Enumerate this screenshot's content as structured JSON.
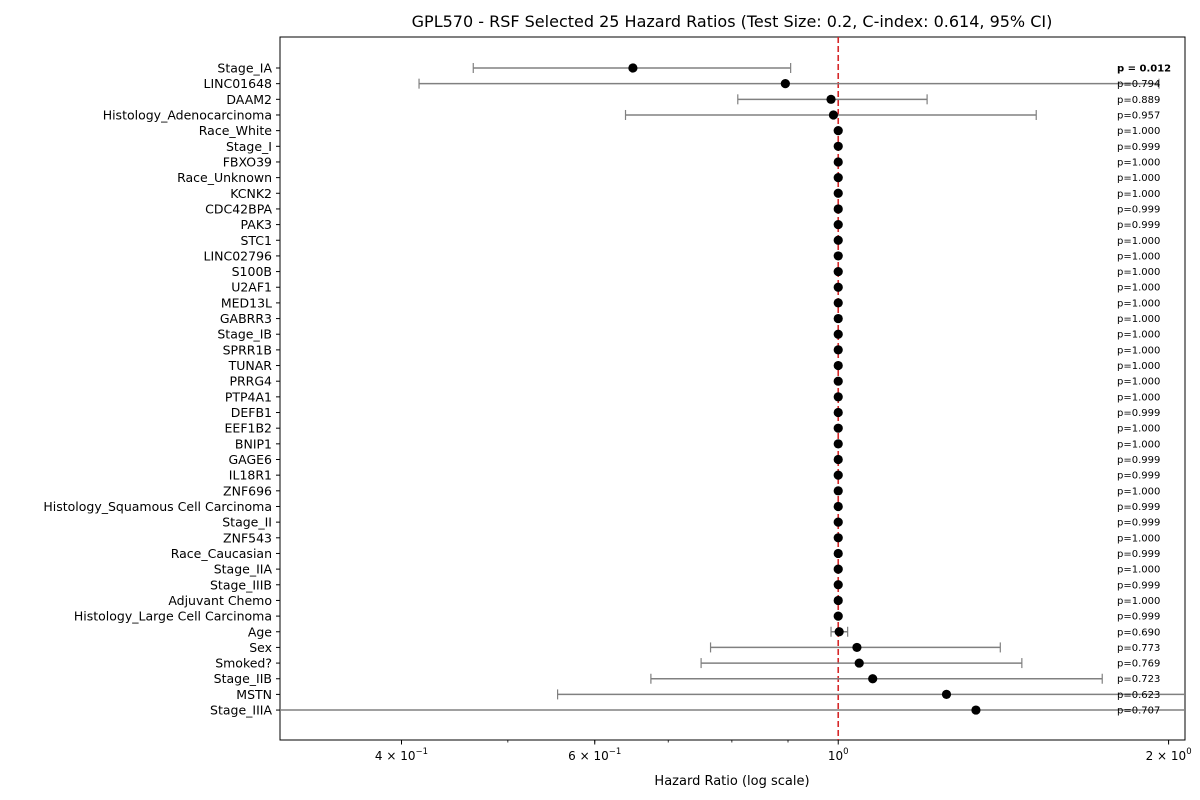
{
  "chart_data": {
    "type": "scatter",
    "title": "GPL570 - RSF Selected 25 Hazard Ratios (Test Size: 0.2, C-index: 0.614, 95% CI)",
    "xlabel": "Hazard Ratio (log scale)",
    "ylabel": "",
    "x_scale": "log",
    "xlim": [
      0.31,
      2.07
    ],
    "x_ticks": [
      {
        "value": 0.4,
        "label": "4 × 10",
        "exp": "−1"
      },
      {
        "value": 0.6,
        "label": "6 × 10",
        "exp": "−1"
      },
      {
        "value": 1.0,
        "label": "10",
        "exp": "0"
      },
      {
        "value": 2.0,
        "label": "2 × 10",
        "exp": "0"
      }
    ],
    "reference_line": {
      "x": 1.0,
      "color": "#d62728",
      "style": "dashed"
    },
    "grid": false,
    "marker_color": "#000000",
    "ci_color": "#808080",
    "rows": [
      {
        "label": "Stage_IA",
        "hr": 0.65,
        "lower": 0.465,
        "upper": 0.905,
        "p": "p = 0.012",
        "significant": true
      },
      {
        "label": "LINC01648",
        "hr": 0.895,
        "lower": 0.415,
        "upper": 1.96,
        "p": "p=0.794"
      },
      {
        "label": "DAAM2",
        "hr": 0.985,
        "lower": 0.81,
        "upper": 1.205,
        "p": "p=0.889"
      },
      {
        "label": "Histology_Adenocarcinoma",
        "hr": 0.99,
        "lower": 0.64,
        "upper": 1.515,
        "p": "p=0.957"
      },
      {
        "label": "Race_White",
        "hr": 1.0,
        "p": "p=1.000"
      },
      {
        "label": "Stage_I",
        "hr": 1.0,
        "p": "p=0.999"
      },
      {
        "label": "FBXO39",
        "hr": 1.0,
        "p": "p=1.000"
      },
      {
        "label": "Race_Unknown",
        "hr": 1.0,
        "p": "p=1.000"
      },
      {
        "label": "KCNK2",
        "hr": 1.0,
        "p": "p=1.000"
      },
      {
        "label": "CDC42BPA",
        "hr": 1.0,
        "p": "p=0.999"
      },
      {
        "label": "PAK3",
        "hr": 1.0,
        "p": "p=0.999"
      },
      {
        "label": "STC1",
        "hr": 1.0,
        "p": "p=1.000"
      },
      {
        "label": "LINC02796",
        "hr": 1.0,
        "p": "p=1.000"
      },
      {
        "label": "S100B",
        "hr": 1.0,
        "p": "p=1.000"
      },
      {
        "label": "U2AF1",
        "hr": 1.0,
        "p": "p=1.000"
      },
      {
        "label": "MED13L",
        "hr": 1.0,
        "p": "p=1.000"
      },
      {
        "label": "GABRR3",
        "hr": 1.0,
        "p": "p=1.000"
      },
      {
        "label": "Stage_IB",
        "hr": 1.0,
        "p": "p=1.000"
      },
      {
        "label": "SPRR1B",
        "hr": 1.0,
        "p": "p=1.000"
      },
      {
        "label": "TUNAR",
        "hr": 1.0,
        "p": "p=1.000"
      },
      {
        "label": "PRRG4",
        "hr": 1.0,
        "p": "p=1.000"
      },
      {
        "label": "PTP4A1",
        "hr": 1.0,
        "p": "p=1.000"
      },
      {
        "label": "DEFB1",
        "hr": 1.0,
        "p": "p=0.999"
      },
      {
        "label": "EEF1B2",
        "hr": 1.0,
        "p": "p=1.000"
      },
      {
        "label": "BNIP1",
        "hr": 1.0,
        "p": "p=1.000"
      },
      {
        "label": "GAGE6",
        "hr": 1.0,
        "p": "p=0.999"
      },
      {
        "label": "IL18R1",
        "hr": 1.0,
        "p": "p=0.999"
      },
      {
        "label": "ZNF696",
        "hr": 1.0,
        "p": "p=1.000"
      },
      {
        "label": "Histology_Squamous Cell Carcinoma",
        "hr": 1.0,
        "p": "p=0.999"
      },
      {
        "label": "Stage_II",
        "hr": 1.0,
        "p": "p=0.999"
      },
      {
        "label": "ZNF543",
        "hr": 1.0,
        "p": "p=1.000"
      },
      {
        "label": "Race_Caucasian",
        "hr": 1.0,
        "p": "p=0.999"
      },
      {
        "label": "Stage_IIA",
        "hr": 1.0,
        "p": "p=1.000"
      },
      {
        "label": "Stage_IIIB",
        "hr": 1.0,
        "p": "p=0.999"
      },
      {
        "label": "Adjuvant Chemo",
        "hr": 1.0,
        "p": "p=1.000"
      },
      {
        "label": "Histology_Large Cell Carcinoma",
        "hr": 1.0,
        "p": "p=0.999"
      },
      {
        "label": "Age",
        "hr": 1.002,
        "lower": 0.985,
        "upper": 1.02,
        "p": "p=0.690"
      },
      {
        "label": "Sex",
        "hr": 1.04,
        "lower": 0.765,
        "upper": 1.405,
        "p": "p=0.773"
      },
      {
        "label": "Smoked?",
        "hr": 1.045,
        "lower": 0.75,
        "upper": 1.47,
        "p": "p=0.769"
      },
      {
        "label": "Stage_IIB",
        "hr": 1.075,
        "lower": 0.675,
        "upper": 1.74,
        "p": "p=0.723"
      },
      {
        "label": "MSTN",
        "hr": 1.255,
        "lower": 0.555,
        "upper": 2.3,
        "p": "p=0.623"
      },
      {
        "label": "Stage_IIIA",
        "hr": 1.335,
        "lower": 0.25,
        "upper": 2.5,
        "p": "p=0.707"
      }
    ]
  }
}
